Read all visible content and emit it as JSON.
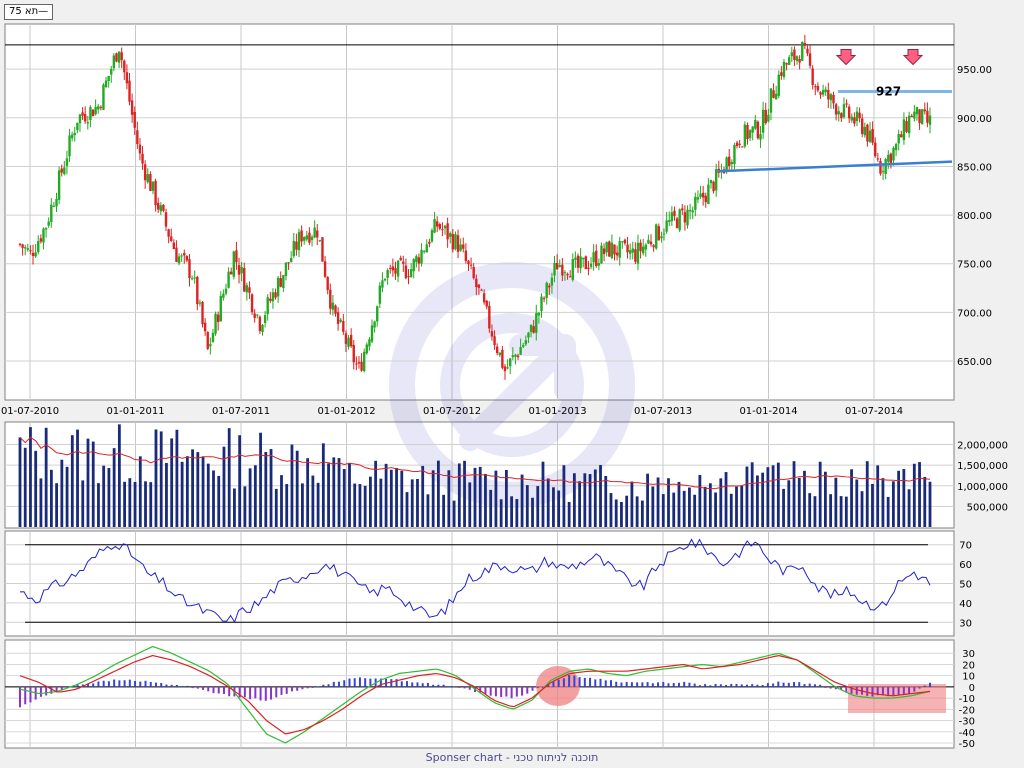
{
  "legend": "תא 75—",
  "footer": "Sponser chart - תוכנה לניתוח טכני",
  "colors": {
    "up": "#22aa22",
    "down": "#dd2222",
    "volume": "#1a2a7a",
    "volume_ma": "#dd2222",
    "rsi": "#2222cc",
    "macd_line": "#dd2222",
    "signal_line": "#33bb33",
    "histogram": "#3344dd",
    "trendline": "#3a80d0",
    "highlight": "#f08080"
  },
  "chart_data": [
    {
      "type": "candlestick",
      "x_labels": [
        "01-07-2010",
        "01-01-2011",
        "01-07-2011",
        "01-01-2012",
        "01-07-2012",
        "01-01-2013",
        "01-07-2013",
        "01-01-2014",
        "01-07-2014"
      ],
      "y_ticks": [
        "650.00",
        "700.00",
        "750.00",
        "800.00",
        "850.00",
        "900.00",
        "950.00"
      ],
      "ylim": [
        615,
        980
      ],
      "price_path": [
        [
          0,
          770
        ],
        [
          4,
          760
        ],
        [
          10,
          790
        ],
        [
          22,
          900
        ],
        [
          30,
          912
        ],
        [
          38,
          975
        ],
        [
          46,
          860
        ],
        [
          60,
          760
        ],
        [
          66,
          740
        ],
        [
          72,
          660
        ],
        [
          82,
          760
        ],
        [
          92,
          690
        ],
        [
          108,
          780
        ],
        [
          114,
          785
        ],
        [
          120,
          700
        ],
        [
          130,
          640
        ],
        [
          140,
          740
        ],
        [
          150,
          745
        ],
        [
          160,
          790
        ],
        [
          168,
          770
        ],
        [
          176,
          720
        ],
        [
          186,
          640
        ],
        [
          196,
          680
        ],
        [
          206,
          750
        ],
        [
          214,
          745
        ],
        [
          226,
          765
        ],
        [
          236,
          760
        ],
        [
          248,
          790
        ],
        [
          258,
          805
        ],
        [
          268,
          840
        ],
        [
          276,
          880
        ],
        [
          284,
          890
        ],
        [
          292,
          950
        ],
        [
          300,
          970
        ],
        [
          306,
          930
        ],
        [
          316,
          905
        ],
        [
          324,
          890
        ],
        [
          330,
          850
        ],
        [
          336,
          870
        ],
        [
          342,
          905
        ],
        [
          348,
          895
        ]
      ],
      "annotations": [
        {
          "text": "927",
          "value": 927
        },
        {
          "label": "resistance",
          "value": 927
        },
        {
          "label": "support-trendline",
          "from": 845,
          "to": 855
        }
      ],
      "grid": true
    },
    {
      "type": "bar",
      "name": "volume",
      "y_ticks": [
        "500,000",
        "1,000,000",
        "1,500,000",
        "2,000,000"
      ],
      "ylim": [
        0,
        2400000
      ],
      "grid": true
    },
    {
      "type": "line",
      "name": "rsi",
      "y_ticks": [
        "30",
        "40",
        "50",
        "60",
        "70"
      ],
      "ylim": [
        25,
        75
      ],
      "levels": [
        30,
        70
      ],
      "values": [
        46,
        42,
        48,
        52,
        58,
        66,
        72,
        65,
        55,
        50,
        42,
        38,
        34,
        30,
        36,
        40,
        48,
        52,
        55,
        60,
        56,
        50,
        45,
        48,
        42,
        36,
        32,
        40,
        52,
        56,
        60,
        58,
        56,
        62,
        58,
        60,
        64,
        58,
        52,
        48,
        60,
        66,
        72,
        68,
        60,
        66,
        72,
        62,
        56,
        60,
        48,
        44,
        46,
        40,
        38,
        50,
        56,
        50
      ]
    },
    {
      "type": "line",
      "name": "macd",
      "y_ticks": [
        "30",
        "20",
        "10",
        "0",
        "-10",
        "-20",
        "-30",
        "-40",
        "-50"
      ],
      "ylim": [
        -50,
        32
      ],
      "macd": [
        10,
        4,
        -5,
        -2,
        6,
        14,
        22,
        28,
        24,
        18,
        10,
        0,
        -12,
        -30,
        -42,
        -38,
        -30,
        -20,
        -8,
        2,
        6,
        10,
        12,
        8,
        0,
        -12,
        -18,
        -10,
        4,
        12,
        14,
        14,
        14,
        16,
        18,
        20,
        16,
        18,
        20,
        24,
        28,
        24,
        14,
        4,
        -2,
        -6,
        -8,
        -6,
        -4
      ],
      "signal": [
        -2,
        -6,
        -4,
        2,
        10,
        20,
        28,
        36,
        30,
        22,
        14,
        2,
        -20,
        -42,
        -50,
        -40,
        -28,
        -16,
        -4,
        6,
        12,
        14,
        16,
        10,
        -2,
        -14,
        -20,
        -12,
        6,
        14,
        16,
        12,
        10,
        14,
        16,
        18,
        20,
        18,
        22,
        26,
        30,
        24,
        12,
        0,
        -8,
        -10,
        -10,
        -8,
        -4
      ],
      "histogram": [
        -18,
        -10,
        -4,
        2,
        4,
        6,
        6,
        4,
        2,
        0,
        -4,
        -8,
        -10,
        -12,
        -6,
        -2,
        2,
        6,
        8,
        8,
        6,
        4,
        2,
        0,
        -4,
        -8,
        -10,
        -4,
        4,
        10,
        8,
        6,
        4,
        4,
        4,
        4,
        2,
        2,
        2,
        2,
        4,
        4,
        2,
        -2,
        -6,
        -8,
        -8,
        -6,
        4
      ],
      "grid": true
    }
  ]
}
